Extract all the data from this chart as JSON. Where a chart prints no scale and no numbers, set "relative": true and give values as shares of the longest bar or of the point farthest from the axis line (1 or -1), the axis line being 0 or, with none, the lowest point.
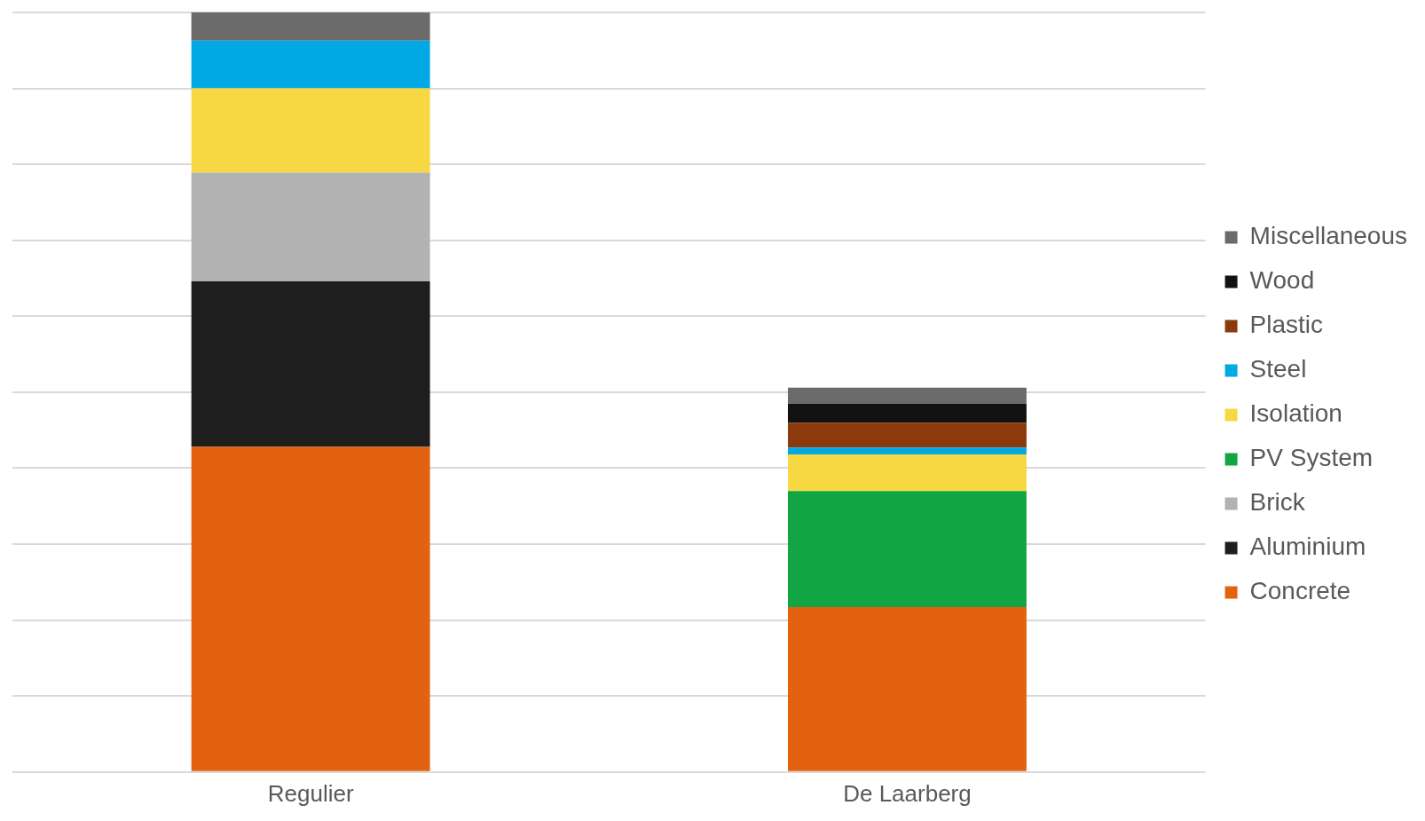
{
  "chart_data": {
    "type": "bar",
    "stacked": true,
    "relative": true,
    "grid": "y",
    "legend": "right",
    "categories": [
      "Regulier",
      "De Laarberg"
    ],
    "series": [
      {
        "name": "Concrete",
        "color": "#e2620f",
        "values": [
          0.428,
          0.217
        ]
      },
      {
        "name": "Aluminium",
        "color": "#1e1e1e",
        "values": [
          0.218,
          null
        ]
      },
      {
        "name": "Brick",
        "color": "#b2b2b2",
        "values": [
          0.143,
          null
        ]
      },
      {
        "name": "PV System",
        "color": "#12a543",
        "values": [
          null,
          0.153
        ]
      },
      {
        "name": "Isolation",
        "color": "#f7d842",
        "values": [
          0.111,
          0.048
        ]
      },
      {
        "name": "Steel",
        "color": "#00a9e3",
        "values": [
          0.063,
          0.009
        ]
      },
      {
        "name": "Plastic",
        "color": "#8a3a0b",
        "values": [
          null,
          0.033
        ]
      },
      {
        "name": "Wood",
        "color": "#111111",
        "values": [
          null,
          0.025
        ]
      },
      {
        "name": "Miscellaneous",
        "color": "#6b6b6b",
        "values": [
          0.037,
          0.021
        ]
      }
    ]
  }
}
